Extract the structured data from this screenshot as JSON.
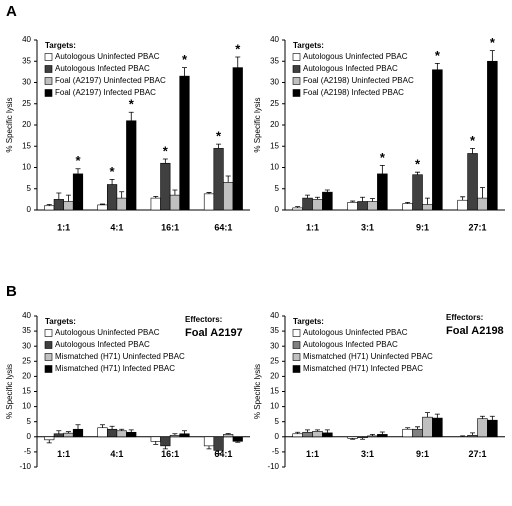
{
  "chart_data": [
    {
      "type": "bar",
      "panel": "A",
      "y_label": "% Specific lysis",
      "legend_title": "Targets:",
      "categories": [
        "1:1",
        "4:1",
        "16:1",
        "64:1"
      ],
      "ylim": [
        0,
        40
      ],
      "yticks": [
        0,
        5,
        10,
        15,
        20,
        25,
        30,
        35,
        40
      ],
      "series": [
        {
          "name": "Autologous Uninfected PBAC",
          "color": "#ffffff",
          "values": [
            1,
            1.2,
            2.8,
            3.8
          ],
          "errors": [
            0.3,
            0.2,
            0.4,
            0.3
          ],
          "annotations": [
            null,
            null,
            null,
            null
          ]
        },
        {
          "name": "Autologous Infected PBAC",
          "color": "#404040",
          "values": [
            2.5,
            6,
            11,
            14.5
          ],
          "errors": [
            1.5,
            1.2,
            1,
            1
          ],
          "annotations": [
            null,
            "*",
            "*",
            "*"
          ]
        },
        {
          "name": "Foal (A2197) Uninfected PBAC",
          "color": "#c0c0c0",
          "values": [
            2,
            2.8,
            3.5,
            6.5
          ],
          "errors": [
            1.5,
            1.5,
            1.2,
            1.5
          ],
          "annotations": [
            null,
            null,
            null,
            null
          ]
        },
        {
          "name": "Foal (A2197) Infected PBAC",
          "color": "#000000",
          "values": [
            8.5,
            21,
            31.5,
            33.5
          ],
          "errors": [
            1.2,
            2,
            2,
            2.5
          ],
          "annotations": [
            "*",
            "*",
            "*",
            "*"
          ]
        }
      ]
    },
    {
      "type": "bar",
      "y_label": "% Specific lysis",
      "legend_title": "Targets:",
      "categories": [
        "1:1",
        "3:1",
        "9:1",
        "27:1"
      ],
      "ylim": [
        0,
        40
      ],
      "yticks": [
        0,
        5,
        10,
        15,
        20,
        25,
        30,
        35,
        40
      ],
      "series": [
        {
          "name": "Autologous Uninfected PBAC",
          "color": "#ffffff",
          "values": [
            0.5,
            1.8,
            1.5,
            2.3
          ],
          "errors": [
            0.3,
            0.3,
            0.3,
            0.8
          ],
          "annotations": [
            null,
            null,
            null,
            null
          ]
        },
        {
          "name": "Autologous Infected PBAC",
          "color": "#404040",
          "values": [
            2.8,
            2,
            8.3,
            13.3
          ],
          "errors": [
            0.7,
            1,
            0.6,
            1.2
          ],
          "annotations": [
            null,
            null,
            "*",
            "*"
          ]
        },
        {
          "name": "Foal (A2198) Uninfected PBAC",
          "color": "#c0c0c0",
          "values": [
            2.5,
            2,
            1.3,
            2.8
          ],
          "errors": [
            0.5,
            0.7,
            1.5,
            2.5
          ],
          "annotations": [
            null,
            null,
            null,
            null
          ]
        },
        {
          "name": "Foal (A2198) Infected PBAC",
          "color": "#000000",
          "values": [
            4.2,
            8.5,
            33,
            35
          ],
          "errors": [
            0.5,
            2,
            1.5,
            2.5
          ],
          "annotations": [
            null,
            "*",
            "*",
            "*"
          ]
        }
      ]
    },
    {
      "type": "bar",
      "panel": "B",
      "y_label": "% Specific lysis",
      "legend_title": "Targets:",
      "effectors_label": "Effectors:",
      "effectors_name": "Foal A2197",
      "categories": [
        "1:1",
        "4:1",
        "16:1",
        "64:1"
      ],
      "ylim": [
        -10,
        40
      ],
      "yticks": [
        -10,
        -5,
        0,
        5,
        10,
        15,
        20,
        25,
        30,
        35,
        40
      ],
      "series": [
        {
          "name": "Autologous Uninfected PBAC",
          "color": "#ffffff",
          "values": [
            -1,
            3,
            -1.5,
            -3
          ],
          "errors": [
            1,
            1,
            1,
            1
          ]
        },
        {
          "name": "Autologous Infected PBAC",
          "color": "#404040",
          "values": [
            1,
            2.5,
            -3,
            -4.5
          ],
          "errors": [
            1,
            1,
            1,
            1
          ]
        },
        {
          "name": "Mismatched (H71) Uninfected PBAC",
          "color": "#c0c0c0",
          "values": [
            1.2,
            2,
            0.5,
            0.8
          ],
          "errors": [
            0.5,
            0.5,
            0.5,
            0.3
          ]
        },
        {
          "name": "Mismatched (H71) Infected PBAC",
          "color": "#000000",
          "values": [
            2.5,
            1.5,
            1,
            -1.5
          ],
          "errors": [
            1.5,
            0.8,
            1,
            0.3
          ]
        }
      ]
    },
    {
      "type": "bar",
      "y_label": "% Specific lysis",
      "legend_title": "Targets:",
      "effectors_label": "Effectors:",
      "effectors_name": "Foal A2198",
      "categories": [
        "1:1",
        "3:1",
        "9:1",
        "27:1"
      ],
      "ylim": [
        -10,
        40
      ],
      "yticks": [
        -10,
        -5,
        0,
        5,
        10,
        15,
        20,
        25,
        30,
        35,
        40
      ],
      "series": [
        {
          "name": "Autologous Uninfected PBAC",
          "color": "#ffffff",
          "values": [
            1,
            -0.5,
            2.5,
            0
          ],
          "errors": [
            0.5,
            0.3,
            0.5,
            0.3
          ]
        },
        {
          "name": "Autologous Infected PBAC",
          "color": "#808080",
          "values": [
            1.5,
            -0.3,
            2.5,
            0.5
          ],
          "errors": [
            0.8,
            0.5,
            0.8,
            0.8
          ]
        },
        {
          "name": "Mismatched (H71) Uninfected PBAC",
          "color": "#c0c0c0",
          "values": [
            1.8,
            0.3,
            6.5,
            6
          ],
          "errors": [
            0.5,
            0.5,
            1.5,
            0.8
          ]
        },
        {
          "name": "Mismatched (H71) Infected PBAC",
          "color": "#000000",
          "values": [
            1.3,
            0.8,
            6.2,
            5.5
          ],
          "errors": [
            1,
            0.8,
            1.3,
            1.3
          ]
        }
      ]
    }
  ]
}
